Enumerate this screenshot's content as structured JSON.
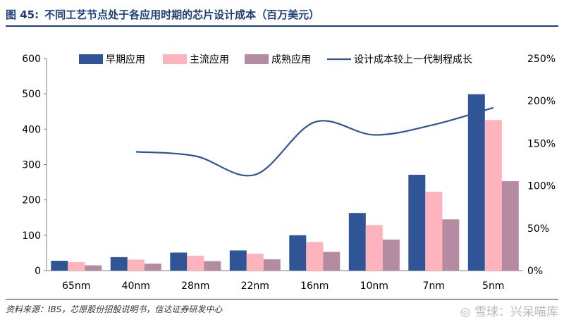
{
  "figure": {
    "number": "图 45:",
    "title": "不同工艺节点处于各应用时期的芯片设计成本（百万美元）",
    "source": "资料来源：IBS，芯原股份招股说明书，信达证券研发中心",
    "watermark": "◎ 雪球：兴呆喵库"
  },
  "chart_data": {
    "type": "bar",
    "categories": [
      "65nm",
      "40nm",
      "28nm",
      "22nm",
      "16nm",
      "10nm",
      "7nm",
      "5nm"
    ],
    "series": [
      {
        "name": "早期应用",
        "color": "#2f5597",
        "values": [
          28,
          38,
          51,
          57,
          100,
          163,
          271,
          499
        ]
      },
      {
        "name": "主流应用",
        "color": "#ffb3bd",
        "values": [
          24,
          31,
          42,
          48,
          81,
          129,
          223,
          426
        ]
      },
      {
        "name": "成熟应用",
        "color": "#b48ba0",
        "values": [
          15,
          20,
          27,
          32,
          53,
          88,
          145,
          253
        ]
      }
    ],
    "line_series": {
      "name": "设计成本较上一代制程成长",
      "color": "#2f5597",
      "axis": "right",
      "values": [
        null,
        140,
        135,
        113,
        175,
        160,
        172,
        192
      ]
    },
    "ylim": [
      0,
      600
    ],
    "yticks": [
      "0",
      "100",
      "200",
      "300",
      "400",
      "500",
      "600"
    ],
    "y2lim": [
      0,
      250
    ],
    "y2ticks": [
      "0%",
      "50%",
      "100%",
      "150%",
      "200%",
      "250%"
    ],
    "grid": false,
    "legend_position": "top"
  }
}
